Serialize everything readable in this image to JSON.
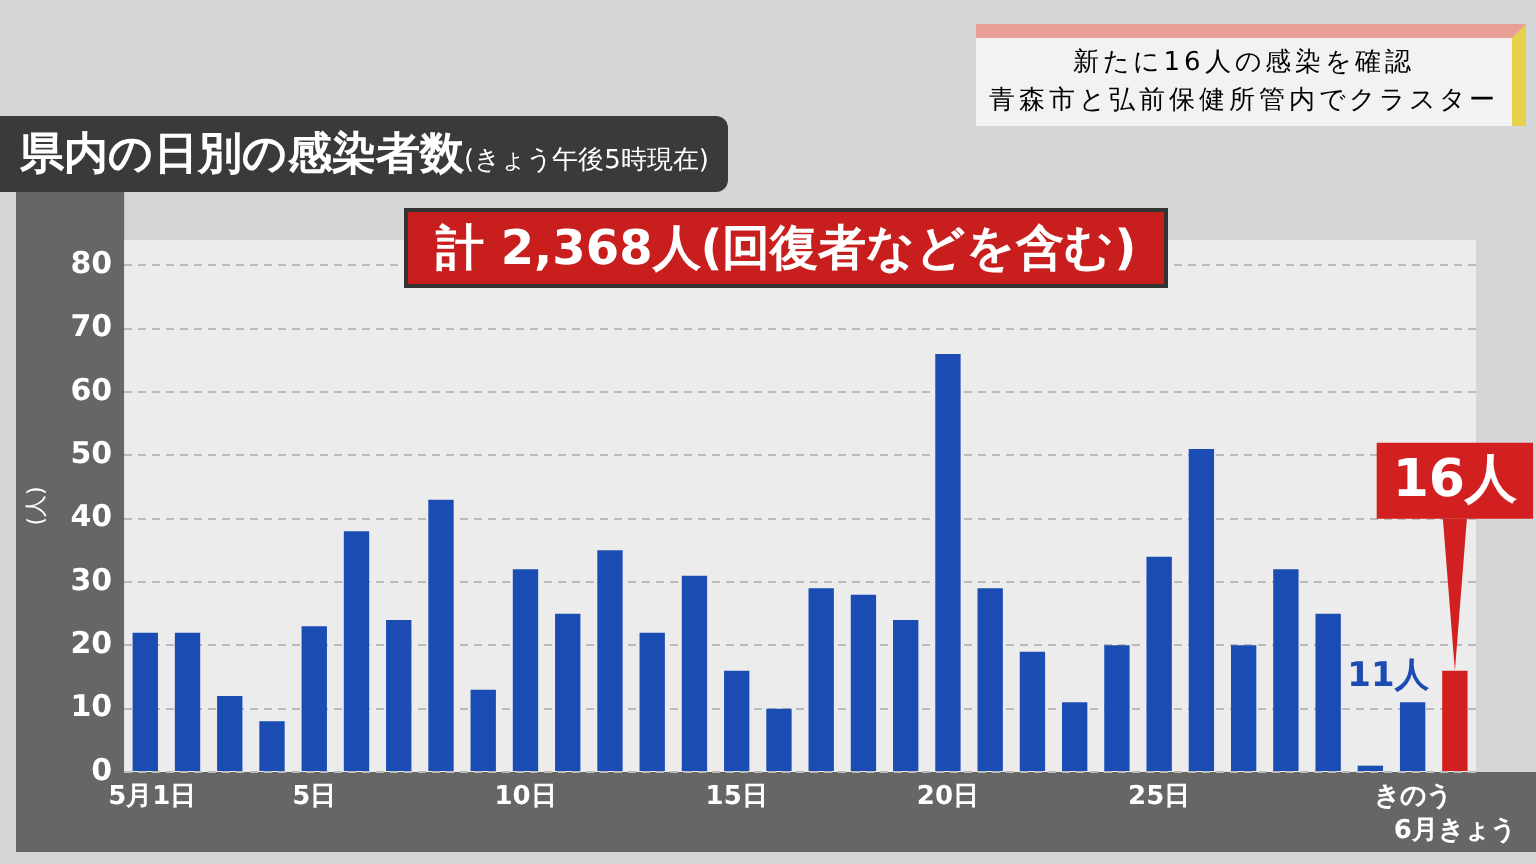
{
  "chart_data": {
    "type": "bar",
    "title": "県内の日別の感染者数",
    "subtitle": "(きょう午後5時現在)",
    "ylabel": "(人)",
    "annotations": [
      "計 2,368人(回復者などを含む)",
      "新たに16人の感染を確認",
      "青森市と弘前保健所管内でクラスター"
    ],
    "categories": [
      "5月1日",
      null,
      null,
      null,
      "5日",
      null,
      null,
      null,
      null,
      "10日",
      null,
      null,
      null,
      null,
      "15日",
      null,
      null,
      null,
      null,
      "20日",
      null,
      null,
      null,
      null,
      "25日",
      null,
      null,
      null,
      null,
      null,
      "きのう",
      "6月きょう"
    ],
    "values": [
      22,
      22,
      12,
      8,
      23,
      38,
      24,
      43,
      13,
      32,
      25,
      35,
      22,
      31,
      16,
      10,
      29,
      28,
      24,
      66,
      29,
      19,
      11,
      20,
      34,
      51,
      20,
      32,
      25,
      1,
      11,
      16
    ],
    "colors": [
      "#1a4cb4",
      "#1a4cb4",
      "#1a4cb4",
      "#1a4cb4",
      "#1a4cb4",
      "#1a4cb4",
      "#1a4cb4",
      "#1a4cb4",
      "#1a4cb4",
      "#1a4cb4",
      "#1a4cb4",
      "#1a4cb4",
      "#1a4cb4",
      "#1a4cb4",
      "#1a4cb4",
      "#1a4cb4",
      "#1a4cb4",
      "#1a4cb4",
      "#1a4cb4",
      "#1a4cb4",
      "#1a4cb4",
      "#1a4cb4",
      "#1a4cb4",
      "#1a4cb4",
      "#1a4cb4",
      "#1a4cb4",
      "#1a4cb4",
      "#1a4cb4",
      "#1a4cb4",
      "#1a4cb4",
      "#1a4cb4",
      "#d21f1f"
    ],
    "value_labels": [
      null,
      null,
      null,
      null,
      null,
      null,
      null,
      null,
      null,
      null,
      null,
      null,
      null,
      null,
      null,
      null,
      null,
      null,
      null,
      null,
      null,
      null,
      null,
      null,
      null,
      null,
      null,
      null,
      null,
      null,
      "11人",
      "16人"
    ],
    "ylim": [
      0,
      84
    ],
    "yticks": [
      0,
      10,
      20,
      30,
      40,
      50,
      60,
      70,
      80
    ],
    "grid": "y",
    "legend": false
  }
}
